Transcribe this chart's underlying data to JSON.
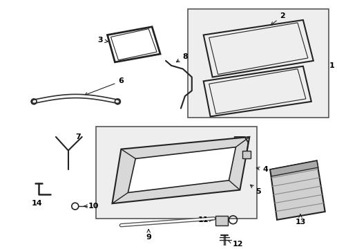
{
  "bg_color": "#ffffff",
  "fig_width": 4.89,
  "fig_height": 3.6,
  "dpi": 100,
  "line_color": "#222222",
  "text_color": "#000000",
  "gray_fill": "#e8e8e8",
  "light_fill": "#f2f2f2"
}
